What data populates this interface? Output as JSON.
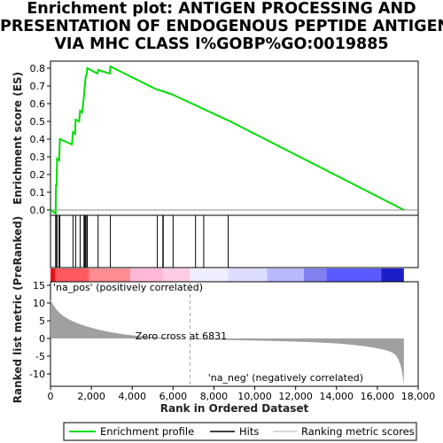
{
  "title_lines": [
    "Enrichment plot: ANTIGEN PROCESSING AND",
    "PRESENTATION OF ENDOGENOUS PEPTIDE ANTIGEN",
    "VIA MHC CLASS I%GOBP%GO:0019885"
  ],
  "colors": {
    "es_line": "#00dd00",
    "hits": "#000000",
    "metric_fill": "#a0a0a0",
    "zero_line": "#aaaaaa",
    "pos_label": "#cc0000",
    "neg_label": "#0000cc"
  },
  "chart_data": {
    "type": "line",
    "es_panel": {
      "ylabel": "Enrichment score (ES)",
      "ylim": [
        -0.03,
        0.84
      ],
      "yticks": [
        "0.0",
        "0.1",
        "0.2",
        "0.3",
        "0.4",
        "0.5",
        "0.6",
        "0.7",
        "0.8"
      ],
      "ytick_values": [
        0.0,
        0.1,
        0.2,
        0.3,
        0.4,
        0.5,
        0.6,
        0.7,
        0.8
      ],
      "series": [
        {
          "name": "Enrichment profile",
          "x": [
            0,
            250,
            270,
            300,
            320,
            420,
            460,
            1050,
            1100,
            1200,
            1230,
            1400,
            1450,
            1550,
            1600,
            1640,
            1680,
            1720,
            1780,
            1800,
            2300,
            2330,
            2900,
            2930,
            5200,
            5230,
            5500,
            5520,
            6000,
            8800,
            17300
          ],
          "y": [
            0.0,
            -0.02,
            0.14,
            0.14,
            0.29,
            0.28,
            0.4,
            0.37,
            0.44,
            0.43,
            0.51,
            0.5,
            0.56,
            0.55,
            0.6,
            0.65,
            0.7,
            0.75,
            0.77,
            0.8,
            0.77,
            0.79,
            0.77,
            0.81,
            0.68,
            0.68,
            0.67,
            0.67,
            0.65,
            0.5,
            0.0
          ]
        }
      ]
    },
    "hits": [
      250,
      300,
      320,
      420,
      460,
      1100,
      1230,
      1450,
      1640,
      1680,
      1720,
      1780,
      1800,
      2330,
      2930,
      5230,
      5500,
      5520,
      6000,
      7100,
      7500,
      8700
    ],
    "metric_panel": {
      "ylabel": "Ranked list metric (PreRanked)",
      "ylim": [
        -13.5,
        16
      ],
      "yticks": [
        "15",
        "10",
        "5",
        "0",
        "-5",
        "-10"
      ],
      "ytick_values": [
        15,
        10,
        5,
        0,
        -5,
        -10
      ],
      "xlim": [
        0,
        18000
      ],
      "xticks": [
        "0",
        "2,000",
        "4,000",
        "6,000",
        "8,000",
        "10,000",
        "12,000",
        "14,000",
        "16,000",
        "18,000"
      ],
      "xtick_values": [
        0,
        2000,
        4000,
        6000,
        8000,
        10000,
        12000,
        14000,
        16000,
        18000
      ],
      "xlabel": "Rank in Ordered Dataset",
      "zero_cross": 6831,
      "zero_cross_label": "Zero cross at 6831",
      "pos_label": "'na_pos' (positively correlated)",
      "neg_label": "'na_neg' (negatively correlated)",
      "n_genes": 17300
    },
    "legend": [
      {
        "name": "Enrichment profile"
      },
      {
        "name": "Hits"
      },
      {
        "name": "Ranking metric scores"
      }
    ]
  }
}
